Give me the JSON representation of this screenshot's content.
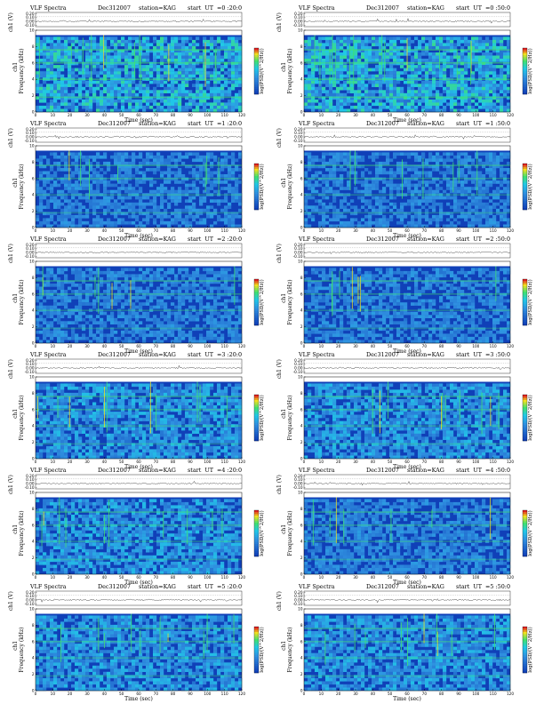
{
  "figure": {
    "header_label": "VLF Spectra",
    "date_label": "Dec312007",
    "station_label": "station=KAG",
    "xlabel": "Time (sec)",
    "ylabel_top": "ch1 (V)",
    "ylabel_ch": "ch1",
    "ylabel_main": "Frequency (kHz)",
    "colorbar_label": "log(PSD/(V^2/Hz))",
    "colors": {
      "background": "#1040b8",
      "mid": "#2f8fe0",
      "cyan": "#20c8e8",
      "green": "#40e070",
      "yellow": "#f0e020",
      "red": "#e02020"
    }
  },
  "chart_data": [
    {
      "type": "heatmap",
      "start_label": "start  UT  =0 :20:0",
      "xlim": [
        0,
        120
      ],
      "ylim": [
        0,
        10
      ],
      "xticks": [
        0,
        10,
        20,
        30,
        40,
        50,
        60,
        70,
        80,
        90,
        100,
        110,
        120
      ],
      "yticks": [
        0,
        2,
        4,
        6,
        8,
        10
      ],
      "top_ticks": [
        "0.20",
        "0.10",
        "0.00",
        "-0.10"
      ],
      "intensity": "high"
    },
    {
      "type": "heatmap",
      "start_label": "start  UT  =0 :50:0",
      "xlim": [
        0,
        120
      ],
      "ylim": [
        0,
        10
      ],
      "xticks": [
        0,
        10,
        20,
        30,
        40,
        50,
        60,
        70,
        80,
        90,
        100,
        110,
        120
      ],
      "yticks": [
        0,
        2,
        4,
        6,
        8,
        10
      ],
      "top_ticks": [
        "0.20",
        "0.10",
        "0.00",
        "-0.10"
      ],
      "intensity": "high"
    },
    {
      "type": "heatmap",
      "start_label": "start  UT  =1 :20:0",
      "xlim": [
        0,
        120
      ],
      "ylim": [
        0,
        10
      ],
      "xticks": [
        0,
        10,
        20,
        30,
        40,
        50,
        60,
        70,
        80,
        90,
        100,
        110,
        120
      ],
      "yticks": [
        0,
        2,
        4,
        6,
        8,
        10
      ],
      "top_ticks": [
        "0.20",
        "0.10",
        "0.00",
        "-0.10"
      ],
      "intensity": "low"
    },
    {
      "type": "heatmap",
      "start_label": "start  UT  =1 :50:0",
      "xlim": [
        0,
        120
      ],
      "ylim": [
        0,
        10
      ],
      "xticks": [
        0,
        10,
        20,
        30,
        40,
        50,
        60,
        70,
        80,
        90,
        100,
        110,
        120
      ],
      "yticks": [
        0,
        2,
        4,
        6,
        8,
        10
      ],
      "top_ticks": [
        "0.20",
        "0.10",
        "0.00",
        "-0.10"
      ],
      "intensity": "low"
    },
    {
      "type": "heatmap",
      "start_label": "start  UT  =2 :20:0",
      "xlim": [
        0,
        120
      ],
      "ylim": [
        0,
        10
      ],
      "xticks": [
        0,
        10,
        20,
        30,
        40,
        50,
        60,
        70,
        80,
        90,
        100,
        110,
        120
      ],
      "yticks": [
        0,
        2,
        4,
        6,
        8,
        10
      ],
      "top_ticks": [
        "0.20",
        "0.10",
        "0.00",
        "-0.10"
      ],
      "intensity": "low"
    },
    {
      "type": "heatmap",
      "start_label": "start  UT  =2 :50:0",
      "xlim": [
        0,
        120
      ],
      "ylim": [
        0,
        10
      ],
      "xticks": [
        0,
        10,
        20,
        30,
        40,
        50,
        60,
        70,
        80,
        90,
        100,
        110,
        120
      ],
      "yticks": [
        0,
        2,
        4,
        6,
        8,
        10
      ],
      "top_ticks": [
        "0.20",
        "0.10",
        "0.00",
        "-0.10"
      ],
      "intensity": "low"
    },
    {
      "type": "heatmap",
      "start_label": "start  UT  =3 :20:0",
      "xlim": [
        0,
        120
      ],
      "ylim": [
        0,
        10
      ],
      "xticks": [
        0,
        10,
        20,
        30,
        40,
        50,
        60,
        70,
        80,
        90,
        100,
        110,
        120
      ],
      "yticks": [
        0,
        2,
        4,
        6,
        8,
        10
      ],
      "top_ticks": [
        "0.20",
        "0.10",
        "0.00",
        "-0.10"
      ],
      "intensity": "medium"
    },
    {
      "type": "heatmap",
      "start_label": "start  UT  =3 :50:0",
      "xlim": [
        0,
        120
      ],
      "ylim": [
        0,
        10
      ],
      "xticks": [
        0,
        10,
        20,
        30,
        40,
        50,
        60,
        70,
        80,
        90,
        100,
        110,
        120
      ],
      "yticks": [
        0,
        2,
        4,
        6,
        8,
        10
      ],
      "top_ticks": [
        "0.20",
        "0.10",
        "0.00",
        "-0.10"
      ],
      "intensity": "medium"
    },
    {
      "type": "heatmap",
      "start_label": "start  UT  =4 :20:0",
      "xlim": [
        0,
        120
      ],
      "ylim": [
        0,
        10
      ],
      "xticks": [
        0,
        10,
        20,
        30,
        40,
        50,
        60,
        70,
        80,
        90,
        100,
        110,
        120
      ],
      "yticks": [
        0,
        2,
        4,
        6,
        8,
        10
      ],
      "top_ticks": [
        "0.20",
        "0.10",
        "0.00",
        "-0.10"
      ],
      "intensity": "medium"
    },
    {
      "type": "heatmap",
      "start_label": "start  UT  =4 :50:0",
      "xlim": [
        0,
        120
      ],
      "ylim": [
        0,
        10
      ],
      "xticks": [
        0,
        10,
        20,
        30,
        40,
        50,
        60,
        70,
        80,
        90,
        100,
        110,
        120
      ],
      "yticks": [
        0,
        2,
        4,
        6,
        8,
        10
      ],
      "top_ticks": [
        "0.20",
        "0.10",
        "0.00",
        "-0.10"
      ],
      "intensity": "low"
    },
    {
      "type": "heatmap",
      "start_label": "start  UT  =5 :20:0",
      "xlim": [
        0,
        120
      ],
      "ylim": [
        0,
        10
      ],
      "xticks": [
        0,
        10,
        20,
        30,
        40,
        50,
        60,
        70,
        80,
        90,
        100,
        110,
        120
      ],
      "yticks": [
        0,
        2,
        4,
        6,
        8,
        10
      ],
      "top_ticks": [
        "0.20",
        "0.10",
        "0.00",
        "-0.10"
      ],
      "intensity": "medium"
    },
    {
      "type": "heatmap",
      "start_label": "start  UT  =5 :50:0",
      "xlim": [
        0,
        120
      ],
      "ylim": [
        0,
        10
      ],
      "xticks": [
        0,
        10,
        20,
        30,
        40,
        50,
        60,
        70,
        80,
        90,
        100,
        110,
        120
      ],
      "yticks": [
        0,
        2,
        4,
        6,
        8,
        10
      ],
      "top_ticks": [
        "0.20",
        "0.10",
        "0.00",
        "-0.10"
      ],
      "intensity": "medium"
    }
  ]
}
